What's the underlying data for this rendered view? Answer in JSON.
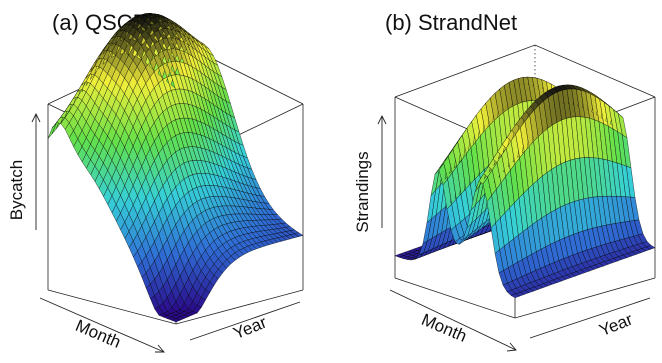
{
  "chart_data": [
    {
      "type": "surface",
      "panel_label": "(a) QSCP",
      "zlabel": "Bycatch",
      "xlabel": "Month",
      "ylabel": "Year",
      "ticks_shown": false,
      "colormap": [
        "#2a0a8a",
        "#2f6fd6",
        "#36d0d8",
        "#62e04a",
        "#f2ef3a",
        "#111111"
      ],
      "shape": "smooth ridge peaking toward the back-right corner, dipping near the front corner, with a secondary rise along the left edge"
    },
    {
      "type": "surface",
      "panel_label": "(b) StrandNet",
      "zlabel": "Strandings",
      "xlabel": "Month",
      "ylabel": "Year",
      "ticks_shown": false,
      "colormap": [
        "#2a0a8a",
        "#2f6fd6",
        "#36d0d8",
        "#62e04a",
        "#f2ef3a",
        "#111111"
      ],
      "shape": "two sharp peaks along the month axis forming ridges that extend along the year axis, low near the front-left"
    }
  ]
}
